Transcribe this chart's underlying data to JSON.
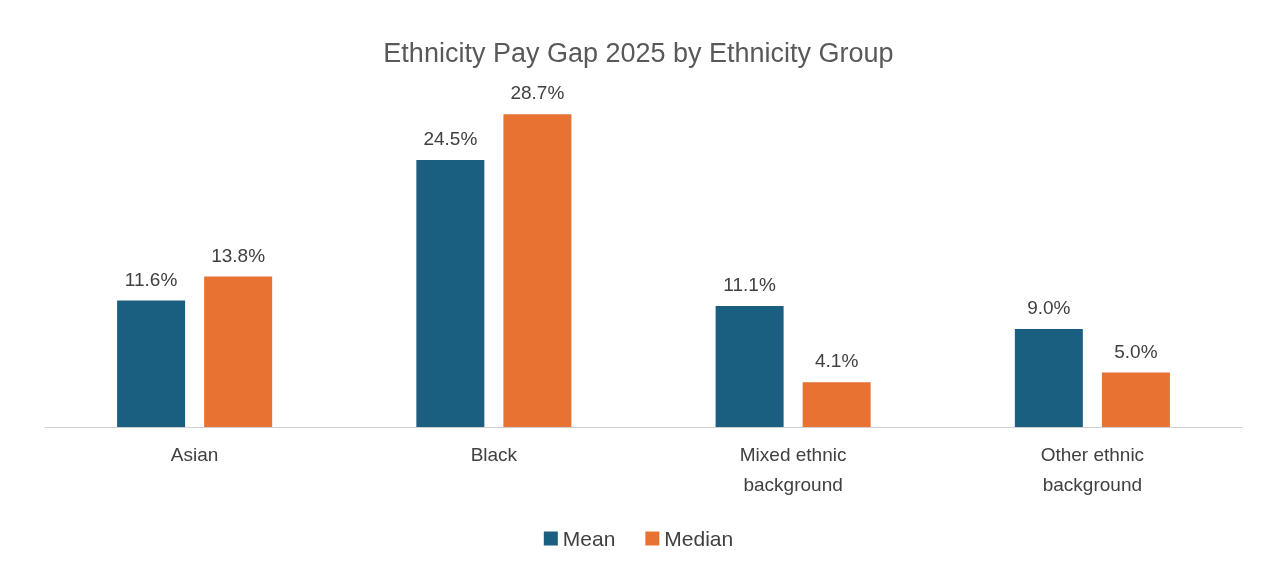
{
  "chart_data": {
    "type": "bar",
    "title": "Ethnicity Pay Gap 2025 by Ethnicity Group",
    "categories": [
      "Asian",
      "Black",
      "Mixed ethnic\nbackground",
      "Other ethnic\nbackground"
    ],
    "series": [
      {
        "name": "Mean",
        "color": "#1a5e80",
        "values": [
          11.6,
          24.5,
          11.1,
          9.0
        ],
        "value_labels": [
          "11.6%",
          "24.5%",
          "11.1%",
          "9.0%"
        ]
      },
      {
        "name": "Median",
        "color": "#e87232",
        "values": [
          13.8,
          28.7,
          4.1,
          5.0
        ],
        "value_labels": [
          "13.8%",
          "28.7%",
          "4.1%",
          "5.0%"
        ]
      }
    ],
    "legend": "bottom",
    "tick_labels": "x"
  }
}
